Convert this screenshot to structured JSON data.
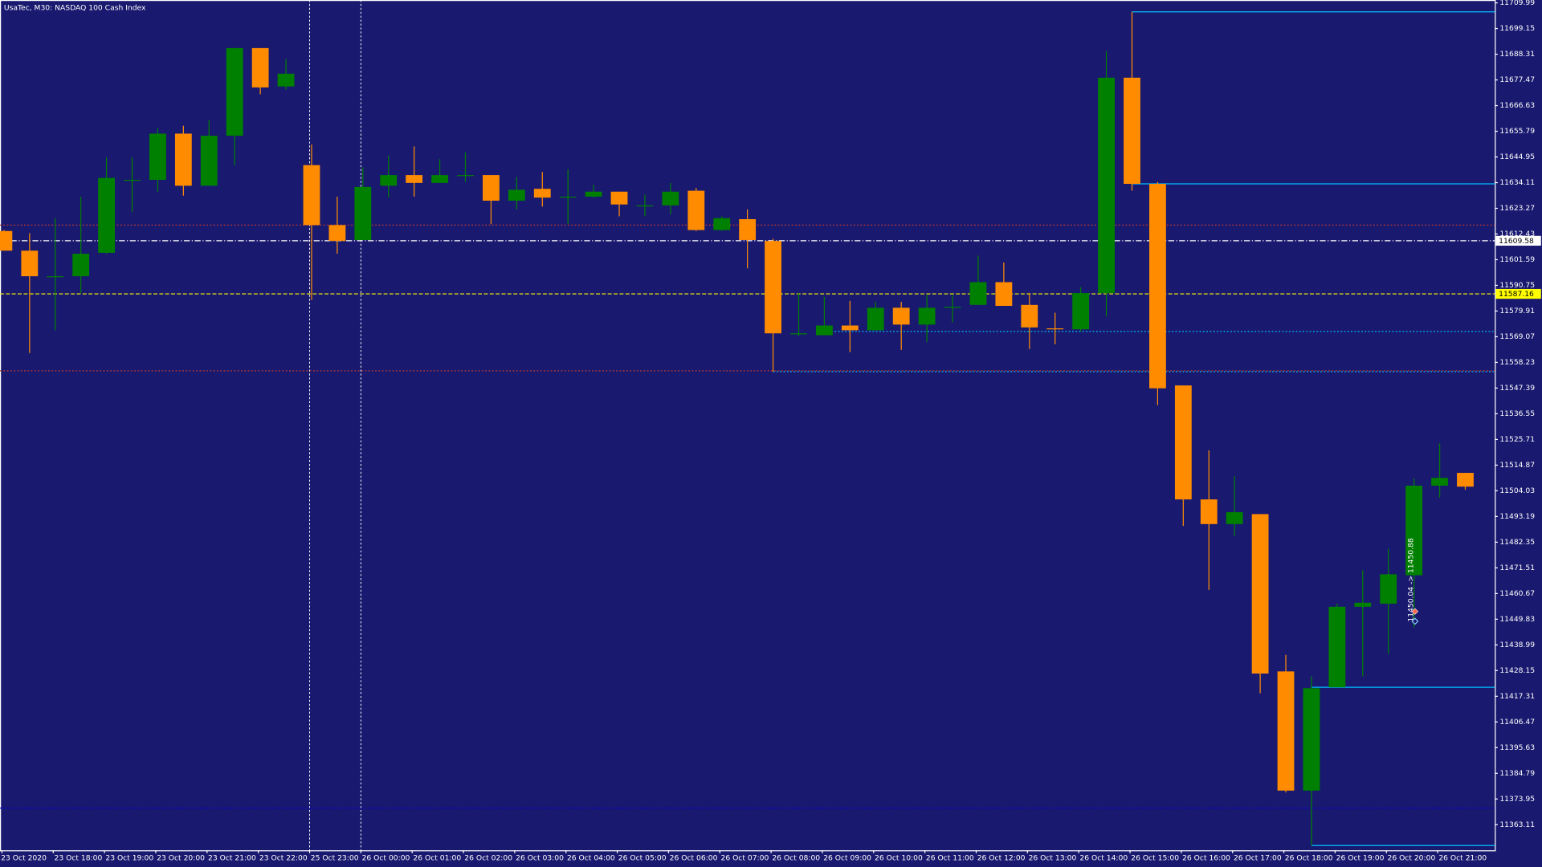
{
  "chart_data": {
    "type": "candlestick",
    "title": "UsaTec, M30:  NASDAQ 100 Cash Index",
    "categories": [
      "23 Oct 2020",
      null,
      "23 Oct 18:00",
      null,
      "23 Oct 19:00",
      null,
      "23 Oct 20:00",
      null,
      "23 Oct 21:00",
      null,
      "23 Oct 22:00",
      null,
      "25 Oct 23:00",
      null,
      "26 Oct 00:00",
      null,
      "26 Oct 01:00",
      null,
      "26 Oct 02:00",
      null,
      "26 Oct 03:00",
      null,
      "26 Oct 04:00",
      null,
      "26 Oct 05:00",
      null,
      "26 Oct 06:00",
      null,
      "26 Oct 07:00",
      null,
      "26 Oct 08:00",
      null,
      "26 Oct 09:00",
      null,
      "26 Oct 10:00",
      null,
      "26 Oct 11:00",
      null,
      "26 Oct 12:00",
      null,
      "26 Oct 13:00",
      null,
      "26 Oct 14:00",
      null,
      "26 Oct 15:00",
      null,
      "26 Oct 16:00",
      null,
      "26 Oct 17:00",
      null,
      "26 Oct 18:00",
      null,
      "26 Oct 19:00",
      null,
      "26 Oct 20:00",
      null,
      "26 Oct 21:00",
      null
    ],
    "open": [
      11613.7,
      11605.4,
      11594.6,
      11594.6,
      11604.5,
      11635.3,
      11635.3,
      11654.8,
      11632.8,
      11653.9,
      11690.9,
      11674.7,
      11641.5,
      11616.2,
      11609.9,
      11632.8,
      11637.3,
      11634.0,
      11637.3,
      11637.3,
      11626.5,
      11631.5,
      11628.2,
      11628.2,
      11630.3,
      11624.5,
      11624.5,
      11630.7,
      11614.1,
      11618.7,
      11609.5,
      11570.5,
      11569.7,
      11573.8,
      11571.8,
      11581.3,
      11574.2,
      11581.7,
      11582.5,
      11592.1,
      11582.5,
      11572.6,
      11572.2,
      11587.5,
      11678.4,
      11633.6,
      11548.5,
      11500.4,
      11490.0,
      11494.2,
      11427.8,
      11377.5,
      11421.1,
      11455.1,
      11456.4,
      11468.4,
      11506.2,
      11511.6
    ],
    "high": [
      11614.1,
      11612.8,
      11619.1,
      11628.2,
      11644.8,
      11644.8,
      11657.2,
      11658.1,
      11660.6,
      11690.9,
      11690.9,
      11686.3,
      11650.2,
      11628.2,
      11640.6,
      11645.6,
      11649.4,
      11644.0,
      11646.9,
      11637.3,
      11636.5,
      11638.6,
      11639.8,
      11633.2,
      11630.3,
      11629.0,
      11634.0,
      11631.9,
      11619.9,
      11622.8,
      11610.4,
      11587.5,
      11585.9,
      11584.2,
      11583.8,
      11583.8,
      11586.7,
      11586.7,
      11603.3,
      11600.4,
      11587.5,
      11579.2,
      11590.0,
      11689.6,
      11706.2,
      11634.4,
      11548.5,
      11521.1,
      11510.3,
      11494.2,
      11434.8,
      11425.7,
      11456.4,
      11470.5,
      11479.6,
      11509.1,
      11524.0,
      11511.6
    ],
    "low": [
      11605.4,
      11562.2,
      11571.8,
      11587.5,
      11604.1,
      11621.6,
      11630.3,
      11628.6,
      11632.8,
      11641.5,
      11671.4,
      11673.4,
      11584.6,
      11604.1,
      11609.9,
      11627.8,
      11628.2,
      11634.0,
      11634.4,
      11616.6,
      11622.8,
      11624.0,
      11616.6,
      11627.8,
      11619.9,
      11619.9,
      11620.7,
      11613.7,
      11613.7,
      11597.9,
      11554.3,
      11569.3,
      11569.7,
      11562.6,
      11571.8,
      11563.5,
      11566.8,
      11575.1,
      11582.5,
      11582.1,
      11563.9,
      11565.9,
      11571.3,
      11577.6,
      11630.7,
      11540.2,
      11489.2,
      11462.2,
      11485.0,
      11418.6,
      11376.7,
      11354.3,
      11421.1,
      11425.7,
      11435.2,
      11446.4,
      11501.2,
      11504.5
    ],
    "close": [
      11605.4,
      11594.6,
      11594.6,
      11604.1,
      11636.1,
      11635.3,
      11654.8,
      11632.8,
      11653.9,
      11690.9,
      11674.3,
      11680.1,
      11616.2,
      11609.5,
      11632.3,
      11637.3,
      11634.0,
      11637.3,
      11637.3,
      11626.5,
      11631.1,
      11627.8,
      11628.2,
      11630.3,
      11624.9,
      11624.5,
      11630.3,
      11614.1,
      11619.1,
      11609.9,
      11570.5,
      11570.5,
      11573.8,
      11571.8,
      11581.3,
      11574.2,
      11581.3,
      11581.7,
      11592.1,
      11582.1,
      11573.0,
      11572.2,
      11587.5,
      11678.4,
      11633.6,
      11547.3,
      11500.4,
      11490.0,
      11495.0,
      11426.9,
      11377.5,
      11420.7,
      11455.1,
      11456.8,
      11468.8,
      11506.2,
      11509.5,
      11505.8
    ],
    "up_color": "#008000",
    "down_color": "#ff8c00",
    "ylim": [
      11352.3,
      11711.2
    ],
    "yticks": [
      11709.99,
      11699.15,
      11688.31,
      11677.47,
      11666.63,
      11655.79,
      11644.95,
      11634.11,
      11623.27,
      11612.43,
      11601.59,
      11590.75,
      11579.91,
      11569.07,
      11558.23,
      11547.39,
      11536.55,
      11525.71,
      11514.87,
      11504.03,
      11493.19,
      11482.35,
      11471.51,
      11460.67,
      11449.83,
      11438.99,
      11428.15,
      11417.31,
      11406.47,
      11395.63,
      11384.79,
      11373.95,
      11363.11
    ],
    "grid": false,
    "price_markers": [
      {
        "value": 11609.58,
        "color": "#ffffff"
      },
      {
        "value": 11587.16,
        "color": "#ffff00"
      }
    ],
    "levels": [
      {
        "value": 11616.2,
        "color": "#c0392b",
        "style": "dotted"
      },
      {
        "value": 11554.7,
        "color": "#c0392b",
        "style": "dotted"
      },
      {
        "value": 11370.1,
        "color": "#0000e0",
        "style": "dotted"
      },
      {
        "value": 11706.2,
        "color": "#00bfff",
        "style": "solid"
      },
      {
        "value": 11633.6,
        "color": "#00bfff",
        "style": "solid"
      },
      {
        "value": 11571.3,
        "color": "#00bfff",
        "style": "dotted"
      },
      {
        "value": 11554.3,
        "color": "#00bfff",
        "style": "dotted"
      },
      {
        "value": 11421.1,
        "color": "#00bfff",
        "style": "solid"
      },
      {
        "value": 11354.3,
        "color": "#00bfff",
        "style": "solid"
      }
    ],
    "annotation": "11450.04 -> 11450.88"
  }
}
